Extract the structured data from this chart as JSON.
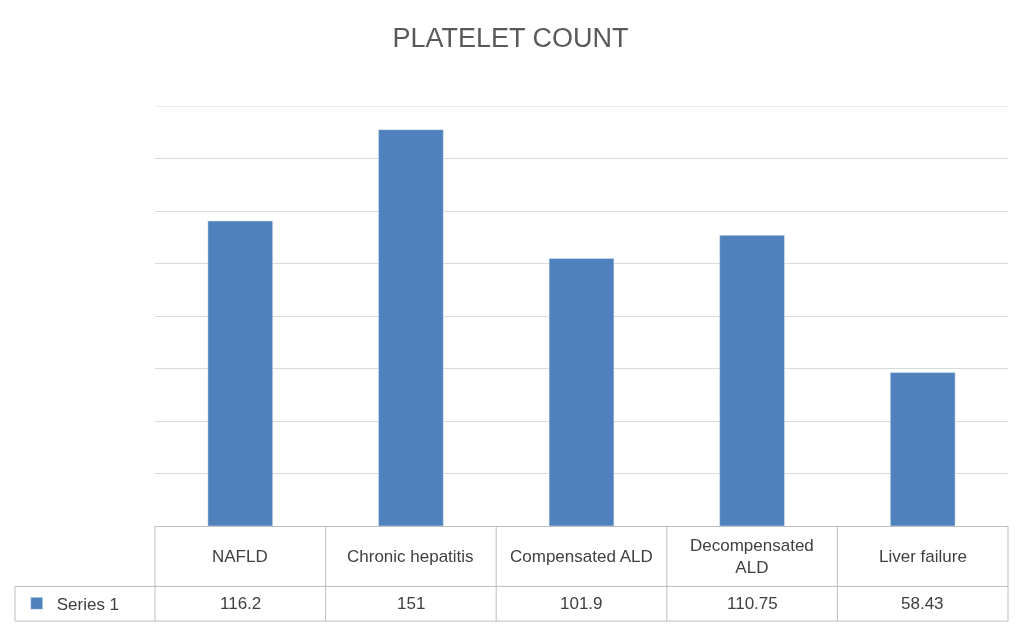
{
  "chart_data": {
    "type": "bar",
    "title": "PLATELET COUNT",
    "categories": [
      "NAFLD",
      "Chronic hepatitis",
      "Compensated ALD",
      "Decompensated ALD",
      "Liver failure"
    ],
    "series": [
      {
        "name": "Series 1",
        "color": "#4f81bd",
        "values": [
          116.2,
          151,
          101.9,
          110.75,
          58.43
        ]
      }
    ],
    "ylim": [
      0,
      160
    ],
    "yticks": [
      {
        "value": 0,
        "label": null
      },
      {
        "value": 20,
        "label": null
      },
      {
        "value": 40,
        "label": null
      },
      {
        "value": 60,
        "label": null
      },
      {
        "value": 80,
        "label": null
      },
      {
        "value": 100,
        "label": null
      },
      {
        "value": 120,
        "label": null
      },
      {
        "value": 140,
        "label": null
      },
      {
        "value": 160,
        "label": null
      }
    ],
    "grid": "y",
    "legend": "bottom left",
    "data_labels": true
  }
}
